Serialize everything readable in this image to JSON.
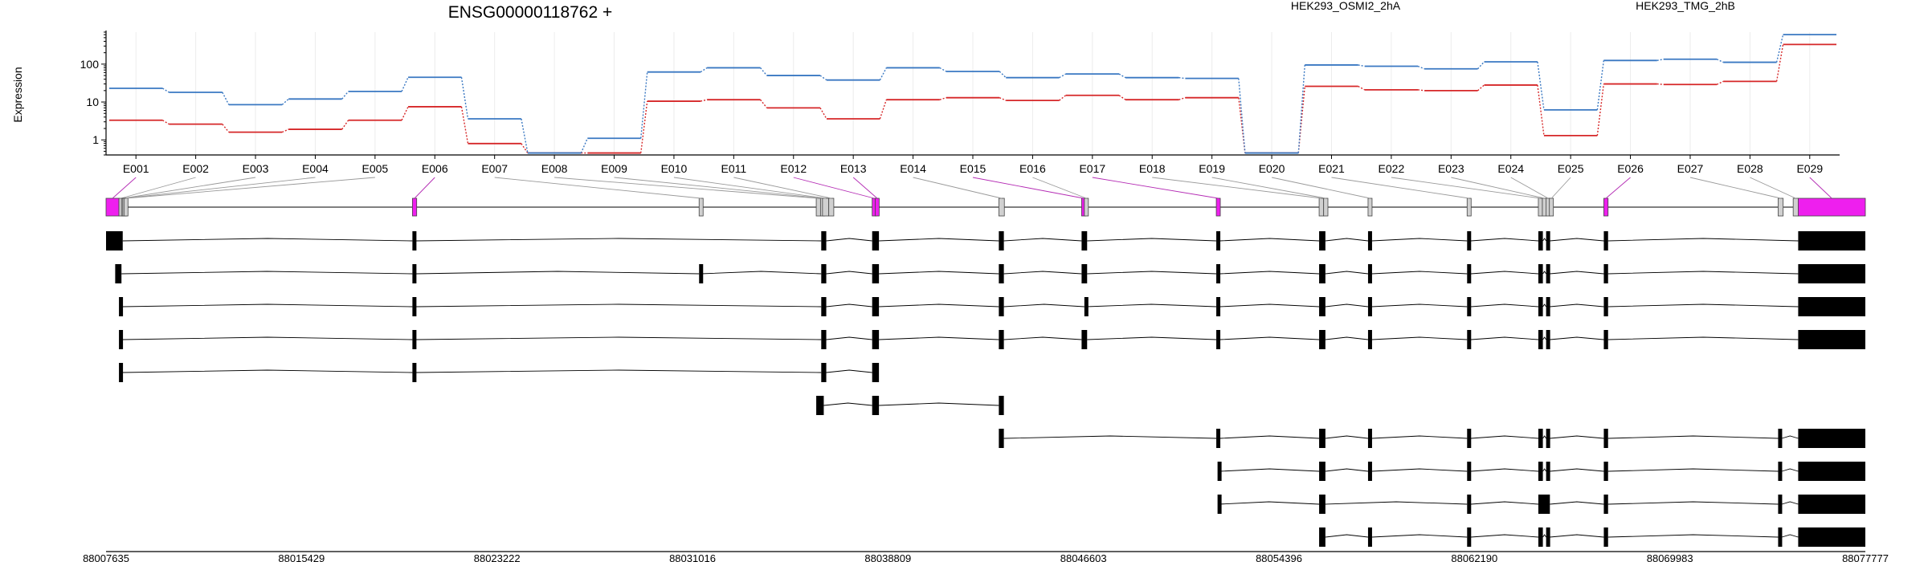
{
  "chart_data": {
    "type": "line",
    "title": "ENSG00000118762 +",
    "ylabel": "Expression",
    "yscale": "log",
    "ylim": [
      0.4,
      700
    ],
    "yticks": [
      1,
      10,
      100
    ],
    "ytick_labels": [
      "1",
      "10",
      "100"
    ],
    "categories": [
      "E001",
      "E002",
      "E003",
      "E004",
      "E005",
      "E006",
      "E007",
      "E008",
      "E009",
      "E010",
      "E011",
      "E012",
      "E013",
      "E014",
      "E015",
      "E016",
      "E017",
      "E018",
      "E019",
      "E020",
      "E021",
      "E022",
      "E023",
      "E024",
      "E025",
      "E026",
      "E027",
      "E028",
      "E029"
    ],
    "series": [
      {
        "name": "HEK293_OSMI2_2hA",
        "color": "#d62728",
        "values": [
          3.3,
          2.6,
          1.6,
          1.9,
          3.3,
          7.5,
          0.8,
          0.45,
          0.45,
          10.5,
          11.5,
          7,
          3.6,
          11.5,
          13,
          11,
          15,
          11.5,
          13,
          0.45,
          26,
          21,
          20,
          28,
          1.3,
          30,
          29,
          35,
          330
        ]
      },
      {
        "name": "HEK293_TMG_2hB",
        "color": "#3a78c2",
        "values": [
          23,
          18,
          8.5,
          12,
          19,
          45,
          3.6,
          0.45,
          1.1,
          62,
          80,
          50,
          38,
          80,
          64,
          44,
          55,
          44,
          42,
          0.45,
          95,
          88,
          75,
          115,
          6.2,
          125,
          135,
          112,
          600
        ]
      }
    ],
    "gene_model_exons": [
      "E001",
      "E002",
      "E003",
      "E004",
      "E005",
      "E006",
      "E007",
      "E008",
      "E009",
      "E010",
      "E011",
      "E012",
      "E013",
      "E014",
      "E015",
      "E016",
      "E017",
      "E018",
      "E019",
      "E020",
      "E021",
      "E022",
      "E023",
      "E024",
      "E025",
      "E026",
      "E027",
      "E028",
      "E029"
    ],
    "highlighted_exons": [
      "E001",
      "E006",
      "E012",
      "E013",
      "E015",
      "E017",
      "E026",
      "E029"
    ],
    "genomic_axis": {
      "start": 88007635,
      "end": 88077777,
      "tick_labels": [
        "88007635",
        "88015429",
        "88023222",
        "88031016",
        "88038809",
        "88046603",
        "88054396",
        "88062190",
        "88069983",
        "88077777"
      ]
    },
    "transcripts": [
      [
        [
          88007635,
          88008300
        ]
      ],
      [
        [
          88008000,
          88008250
        ]
      ],
      [
        [
          88008150,
          88008280
        ]
      ],
      [
        [
          88008150,
          88008280
        ]
      ],
      [
        [
          88008150,
          88008280
        ]
      ],
      [
        [
          88036200,
          88036550
        ]
      ]
    ]
  }
}
